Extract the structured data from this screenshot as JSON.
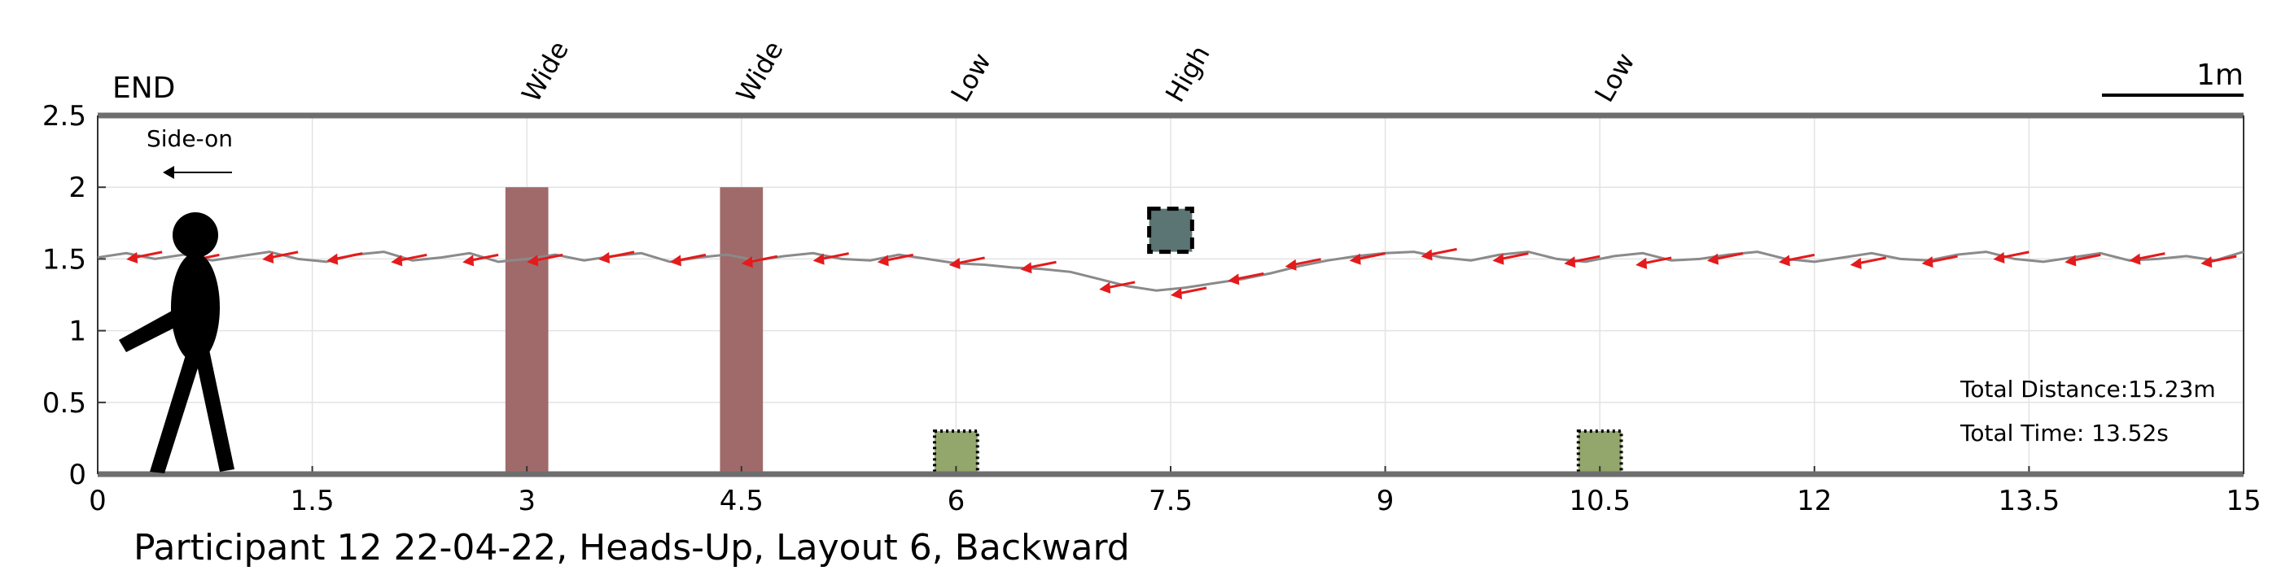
{
  "chart_data": {
    "type": "line",
    "title": "Participant 12 22-04-22, Heads-Up, Layout 6, Backward",
    "xlabel": "",
    "ylabel": "",
    "xlim": [
      0,
      15
    ],
    "ylim": [
      0,
      2.5
    ],
    "x_ticks": [
      "0",
      "1.5",
      "3",
      "4.5",
      "6",
      "7.5",
      "9",
      "10.5",
      "12",
      "13.5",
      "15"
    ],
    "y_ticks": [
      "0",
      "0.5",
      "1",
      "1.5",
      "2",
      "2.5"
    ],
    "grid": true,
    "end_label": "END",
    "direction_label": "Side-on",
    "scale_bar_label": "1m",
    "obstacle_labels": [
      {
        "x": 3,
        "text": "Wide"
      },
      {
        "x": 4.5,
        "text": "Wide"
      },
      {
        "x": 6,
        "text": "Low"
      },
      {
        "x": 7.5,
        "text": "High"
      },
      {
        "x": 10.5,
        "text": "Low"
      }
    ],
    "obstacles": [
      {
        "kind": "wide",
        "x0": 2.85,
        "x1": 3.15,
        "y0": 0,
        "y1": 2.0
      },
      {
        "kind": "wide",
        "x0": 4.35,
        "x1": 4.65,
        "y0": 0,
        "y1": 2.0
      },
      {
        "kind": "low",
        "x0": 5.85,
        "x1": 6.15,
        "y0": 0,
        "y1": 0.3
      },
      {
        "kind": "high",
        "x0": 7.35,
        "x1": 7.65,
        "y0": 1.55,
        "y1": 1.85
      },
      {
        "kind": "low",
        "x0": 10.35,
        "x1": 10.65,
        "y0": 0,
        "y1": 0.3
      }
    ],
    "stats": [
      {
        "label": "Total Distance:15.23m"
      },
      {
        "label": "Total Time: 13.52s"
      }
    ],
    "series": [
      {
        "x": [
          0,
          0.2,
          0.4,
          0.6,
          0.8,
          1.0,
          1.2,
          1.4,
          1.6,
          1.8,
          2.0,
          2.2,
          2.4,
          2.6,
          2.8,
          3.0,
          3.2,
          3.4,
          3.6,
          3.8,
          4.0,
          4.2,
          4.4,
          4.6,
          4.8,
          5.0,
          5.2,
          5.4,
          5.6,
          5.8,
          6.0,
          6.2,
          6.4,
          6.6,
          6.8,
          7.0,
          7.2,
          7.4,
          7.6,
          7.8,
          8.0,
          8.2,
          8.4,
          8.6,
          8.8,
          9.0,
          9.2,
          9.4,
          9.6,
          9.8,
          10.0,
          10.2,
          10.4,
          10.6,
          10.8,
          11.0,
          11.2,
          11.4,
          11.6,
          11.8,
          12.0,
          12.2,
          12.4,
          12.6,
          12.8,
          13.0,
          13.2,
          13.4,
          13.6,
          13.8,
          14.0,
          14.2,
          14.4,
          14.6,
          14.8,
          15.0
        ],
        "y": [
          1.51,
          1.54,
          1.5,
          1.53,
          1.49,
          1.52,
          1.55,
          1.5,
          1.48,
          1.53,
          1.55,
          1.49,
          1.51,
          1.54,
          1.48,
          1.5,
          1.53,
          1.49,
          1.52,
          1.54,
          1.48,
          1.51,
          1.53,
          1.49,
          1.52,
          1.54,
          1.5,
          1.49,
          1.53,
          1.5,
          1.47,
          1.46,
          1.44,
          1.43,
          1.41,
          1.36,
          1.31,
          1.28,
          1.3,
          1.33,
          1.36,
          1.4,
          1.45,
          1.49,
          1.52,
          1.54,
          1.55,
          1.51,
          1.49,
          1.53,
          1.55,
          1.5,
          1.48,
          1.52,
          1.54,
          1.49,
          1.5,
          1.53,
          1.55,
          1.5,
          1.48,
          1.51,
          1.54,
          1.5,
          1.49,
          1.53,
          1.55,
          1.5,
          1.48,
          1.51,
          1.54,
          1.49,
          1.5,
          1.52,
          1.49,
          1.55
        ]
      }
    ],
    "direction_arrows": [
      {
        "x": 14.7,
        "y": 1.49
      },
      {
        "x": 14.2,
        "y": 1.51
      },
      {
        "x": 13.75,
        "y": 1.5
      },
      {
        "x": 13.25,
        "y": 1.52
      },
      {
        "x": 12.75,
        "y": 1.49
      },
      {
        "x": 12.25,
        "y": 1.48
      },
      {
        "x": 11.75,
        "y": 1.5
      },
      {
        "x": 11.25,
        "y": 1.51
      },
      {
        "x": 10.75,
        "y": 1.48
      },
      {
        "x": 10.25,
        "y": 1.49
      },
      {
        "x": 9.75,
        "y": 1.51
      },
      {
        "x": 9.25,
        "y": 1.54
      },
      {
        "x": 8.75,
        "y": 1.51
      },
      {
        "x": 8.3,
        "y": 1.47
      },
      {
        "x": 7.9,
        "y": 1.37
      },
      {
        "x": 7.5,
        "y": 1.27
      },
      {
        "x": 7.0,
        "y": 1.31
      },
      {
        "x": 6.45,
        "y": 1.45
      },
      {
        "x": 5.95,
        "y": 1.48
      },
      {
        "x": 5.45,
        "y": 1.5
      },
      {
        "x": 5.0,
        "y": 1.51
      },
      {
        "x": 4.5,
        "y": 1.49
      },
      {
        "x": 4.0,
        "y": 1.5
      },
      {
        "x": 3.5,
        "y": 1.52
      },
      {
        "x": 3.0,
        "y": 1.5
      },
      {
        "x": 2.55,
        "y": 1.5
      },
      {
        "x": 2.05,
        "y": 1.5
      },
      {
        "x": 1.6,
        "y": 1.51
      },
      {
        "x": 1.15,
        "y": 1.52
      },
      {
        "x": 0.6,
        "y": 1.5
      },
      {
        "x": 0.2,
        "y": 1.52
      }
    ],
    "colors": {
      "path": "#8a8a8a",
      "arrow": "#e41a1c",
      "wide": "#a06a6a",
      "low": "#93a66b",
      "high": "#5b7474",
      "axis": "#6e6e6e",
      "grid": "#e3e3e3"
    }
  }
}
